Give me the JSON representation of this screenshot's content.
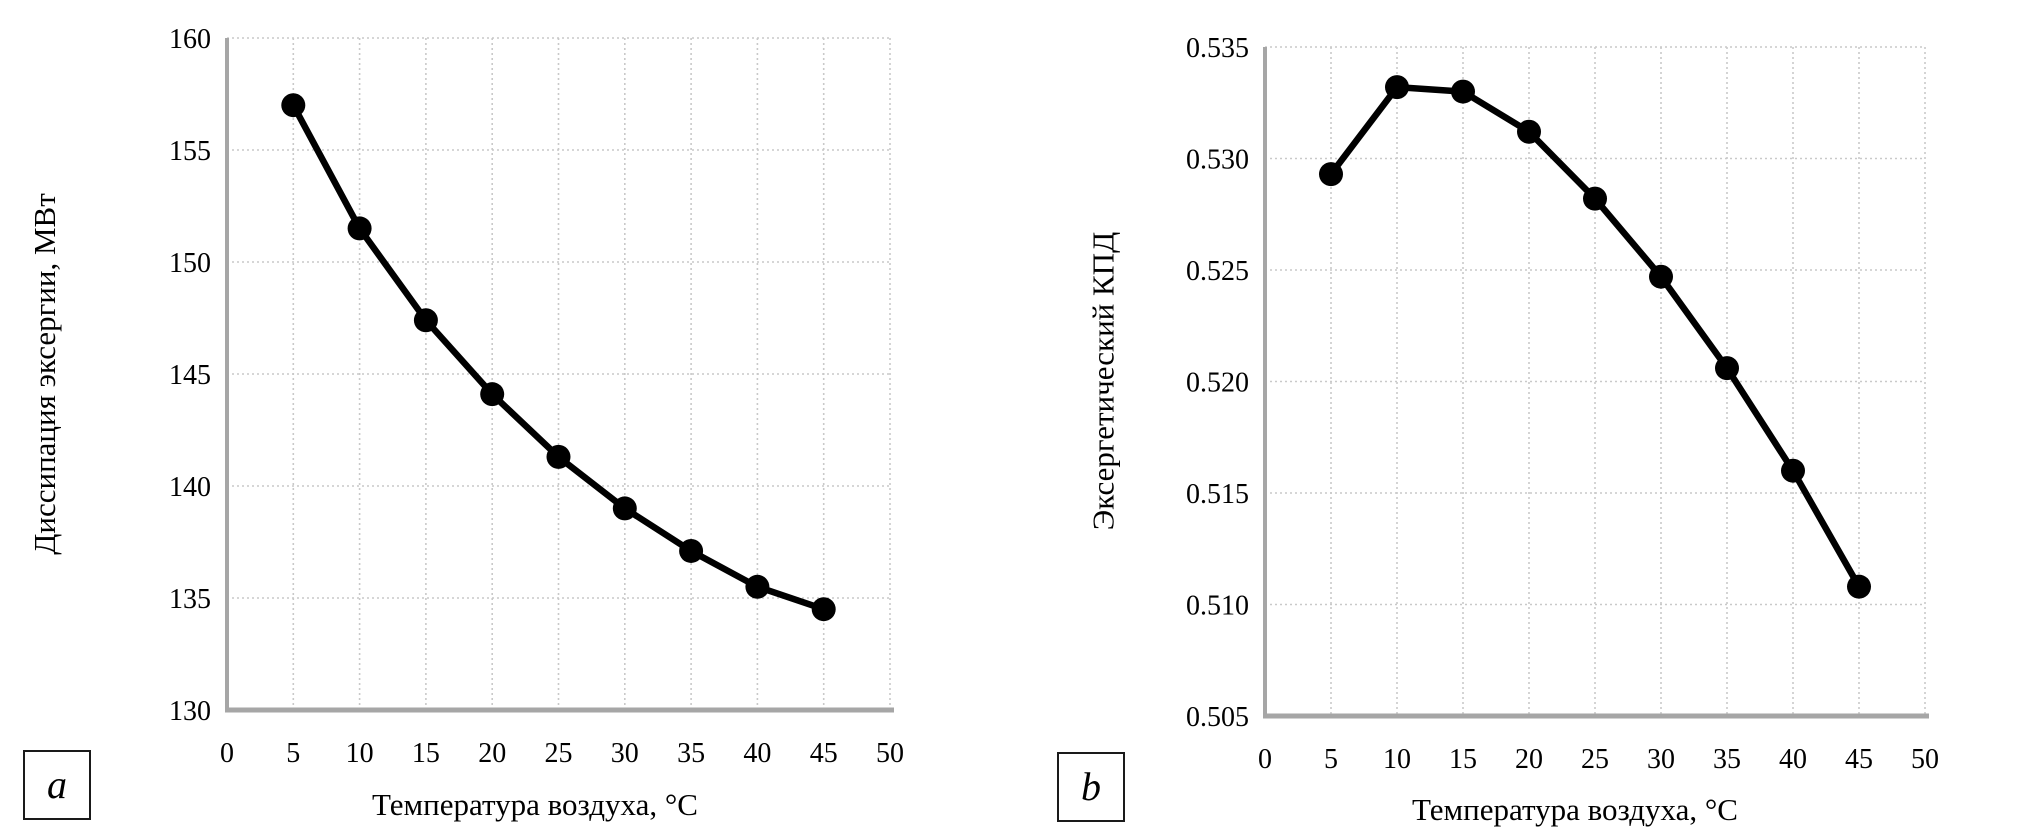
{
  "styles": {
    "line_color": "#000000",
    "marker_color": "#000000",
    "grid_color": "#c9c9c9",
    "axis_color": "#a6a6a6",
    "background": "#ffffff"
  },
  "chart_data": [
    {
      "type": "line",
      "panel_label": "a",
      "title": "",
      "xlabel": "Температура  воздуха, °C",
      "ylabel": "Диссипация эксергии, МВт",
      "xlim": [
        0,
        50
      ],
      "ylim": [
        130,
        160
      ],
      "grid": true,
      "legend_position": "none",
      "marker": "circle",
      "x": [
        5,
        10,
        15,
        20,
        25,
        30,
        35,
        40,
        45
      ],
      "values": [
        157.0,
        151.5,
        147.4,
        144.1,
        141.3,
        139.0,
        137.1,
        135.5,
        134.5
      ],
      "xticks": [
        0,
        5,
        10,
        15,
        20,
        25,
        30,
        35,
        40,
        45,
        50
      ],
      "xtick_labels": [
        "0",
        "5",
        "10",
        "15",
        "20",
        "25",
        "30",
        "35",
        "40",
        "45",
        "50"
      ],
      "yticks": [
        130,
        135,
        140,
        145,
        150,
        155,
        160
      ],
      "ytick_labels": [
        "130",
        "135",
        "140",
        "145",
        "150",
        "155",
        "160"
      ]
    },
    {
      "type": "line",
      "panel_label": "b",
      "title": "",
      "xlabel": "Температура  воздуха, °C",
      "ylabel": "Эксергетический КПД",
      "xlim": [
        0,
        50
      ],
      "ylim": [
        0.505,
        0.535
      ],
      "grid": true,
      "legend_position": "none",
      "marker": "circle",
      "x": [
        5,
        10,
        15,
        20,
        25,
        30,
        35,
        40,
        45
      ],
      "values": [
        0.5293,
        0.5332,
        0.533,
        0.5312,
        0.5282,
        0.5247,
        0.5206,
        0.516,
        0.5108
      ],
      "xticks": [
        0,
        5,
        10,
        15,
        20,
        25,
        30,
        35,
        40,
        45,
        50
      ],
      "xtick_labels": [
        "0",
        "5",
        "10",
        "15",
        "20",
        "25",
        "30",
        "35",
        "40",
        "45",
        "50"
      ],
      "yticks": [
        0.505,
        0.51,
        0.515,
        0.52,
        0.525,
        0.53,
        0.535
      ],
      "ytick_labels": [
        "0.505",
        "0.510",
        "0.515",
        "0.520",
        "0.525",
        "0.530",
        "0.535"
      ]
    }
  ]
}
